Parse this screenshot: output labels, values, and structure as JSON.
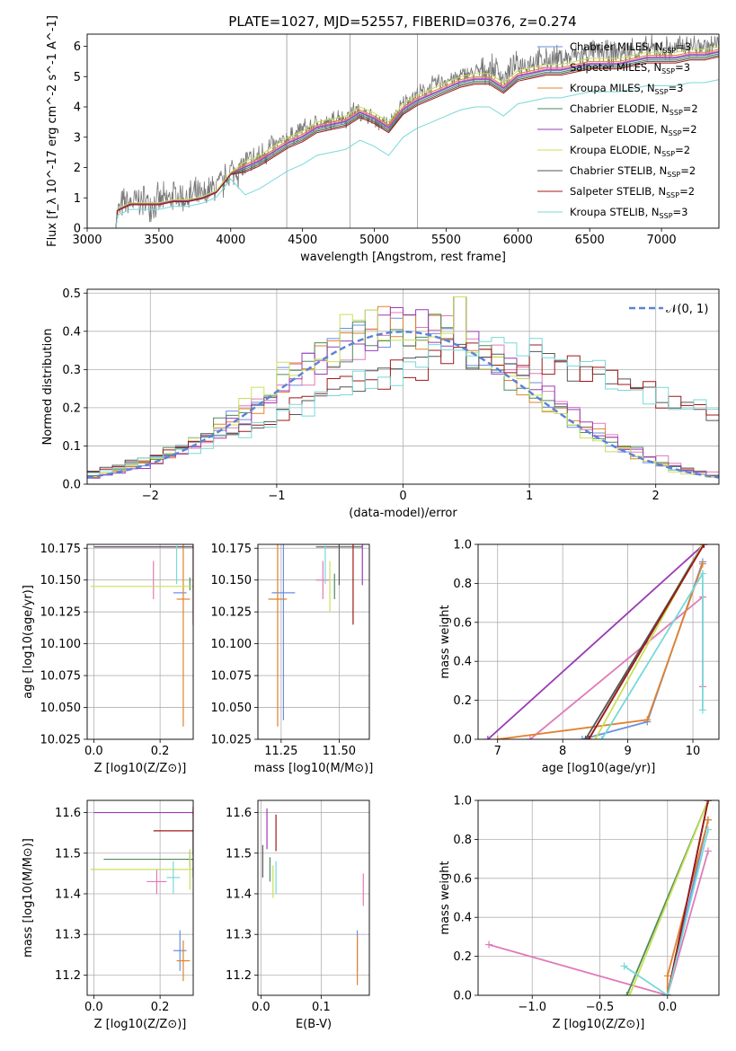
{
  "figure": {
    "title": "PLATE=1027, MJD=52557, FIBERID=0376, z=0.274"
  },
  "colors": {
    "Chabrier MILES": "#6a8fe0",
    "Salpeter MILES": "#e07ab8",
    "Kroupa MILES": "#e0822c",
    "Chabrier ELODIE": "#4f8a5a",
    "Salpeter ELODIE": "#9a3cb3",
    "Kroupa ELODIE": "#c8e05a",
    "Chabrier STELIB": "#555555",
    "Salpeter STELIB": "#a01818",
    "Kroupa STELIB": "#78d8d8",
    "gauss": "#5b82d6",
    "grid": "#b0b0b0"
  },
  "chart_data": [
    {
      "id": "spectrum",
      "type": "line",
      "title": "PLATE=1027, MJD=52557, FIBERID=0376, z=0.274",
      "xlabel": "wavelength [Angstrom, rest frame]",
      "ylabel": "Flux [f_λ 10^-17 erg cm^-2 s^-1 A^-1]",
      "xlim": [
        3000,
        7400
      ],
      "ylim": [
        0,
        6.4
      ],
      "xticks": [
        3000,
        3500,
        4000,
        4500,
        5000,
        5500,
        6000,
        6500,
        7000
      ],
      "yticks": [
        0,
        1,
        2,
        3,
        4,
        5,
        6
      ],
      "grid": false,
      "legend": "upper right",
      "data_color": "#777777",
      "data_x": [
        3200,
        3210,
        3250,
        3300,
        3350,
        3400,
        3450,
        3500,
        3550,
        3600,
        3650,
        3700,
        3750,
        3800,
        3850,
        3900,
        3950,
        4000,
        4050,
        4100,
        4150,
        4200,
        4250,
        4300,
        4350,
        4400,
        4450,
        4500,
        4550,
        4600,
        4650,
        4700,
        4750,
        4800,
        4850,
        4900,
        4950,
        5000,
        5050,
        5100,
        5150,
        5200,
        5250,
        5300,
        5350,
        5400,
        5450,
        5500,
        5550,
        5600,
        5650,
        5700,
        5750,
        5800,
        5850,
        5900,
        5950,
        6000,
        6050,
        6100,
        6150,
        6200,
        6250,
        6300,
        6350,
        6400,
        6450,
        6500,
        6550,
        6600,
        6650,
        6700,
        6750,
        6800,
        6850,
        6900,
        6950,
        7000,
        7050,
        7100,
        7150,
        7200,
        7250,
        7300,
        7350,
        7400
      ],
      "data_y": [
        0.0,
        0.5,
        0.8,
        0.8,
        0.9,
        0.9,
        0.8,
        0.9,
        0.9,
        1.1,
        1.0,
        1.0,
        1.1,
        1.0,
        1.2,
        1.4,
        1.5,
        1.9,
        1.9,
        2.1,
        2.2,
        2.3,
        2.6,
        2.7,
        2.8,
        3.0,
        3.1,
        3.3,
        3.3,
        3.5,
        3.4,
        3.5,
        3.7,
        3.6,
        3.9,
        3.8,
        3.7,
        3.6,
        3.5,
        3.4,
        3.7,
        4.1,
        4.3,
        4.4,
        4.5,
        4.7,
        4.8,
        4.9,
        4.9,
        5.0,
        5.1,
        5.1,
        5.2,
        5.2,
        5.3,
        4.9,
        5.2,
        5.4,
        5.4,
        5.5,
        5.5,
        5.5,
        5.6,
        5.6,
        5.6,
        5.7,
        5.7,
        5.8,
        5.8,
        5.8,
        5.7,
        5.8,
        5.8,
        5.9,
        5.8,
        5.9,
        5.9,
        5.9,
        5.9,
        5.9,
        6.0,
        6.0,
        6.0,
        6.0,
        6.0,
        6.0
      ],
      "series": [
        {
          "name": "Chabrier MILES",
          "nssp": "3",
          "offset": 0.0
        },
        {
          "name": "Salpeter MILES",
          "nssp": "3",
          "offset": 0.05
        },
        {
          "name": "Kroupa MILES",
          "nssp": "3",
          "offset": 0.1
        },
        {
          "name": "Chabrier ELODIE",
          "nssp": "2",
          "offset": -0.05
        },
        {
          "name": "Salpeter ELODIE",
          "nssp": "2",
          "offset": 0.02
        },
        {
          "name": "Kroupa ELODIE",
          "nssp": "2",
          "offset": 0.2
        },
        {
          "name": "Chabrier STELIB",
          "nssp": "2",
          "offset": -0.1
        },
        {
          "name": "Salpeter STELIB",
          "nssp": "2",
          "offset": -0.15
        },
        {
          "name": "Kroupa STELIB",
          "nssp": "3",
          "offset": -0.9
        }
      ],
      "model_x": [
        3200,
        3210,
        3300,
        3400,
        3500,
        3600,
        3700,
        3800,
        3900,
        4000,
        4100,
        4200,
        4300,
        4400,
        4500,
        4600,
        4700,
        4800,
        4900,
        5000,
        5100,
        5200,
        5300,
        5400,
        5500,
        5600,
        5700,
        5800,
        5900,
        6000,
        6100,
        6200,
        6300,
        6400,
        6500,
        6600,
        6700,
        6800,
        6900,
        7000,
        7100,
        7200,
        7300,
        7400
      ],
      "model_y": [
        0.0,
        0.6,
        0.8,
        0.8,
        0.8,
        0.9,
        0.9,
        1.0,
        1.2,
        1.8,
        2.0,
        2.2,
        2.5,
        2.8,
        3.0,
        3.3,
        3.4,
        3.5,
        3.8,
        3.6,
        3.3,
        3.9,
        4.2,
        4.4,
        4.6,
        4.8,
        4.9,
        4.9,
        4.6,
        5.0,
        5.1,
        5.2,
        5.2,
        5.3,
        5.4,
        5.4,
        5.4,
        5.5,
        5.6,
        5.6,
        5.6,
        5.7,
        5.7,
        5.8
      ]
    },
    {
      "id": "residuals",
      "type": "line",
      "xlabel": "(data-model)/error",
      "ylabel": "Normed distribution",
      "xlim": [
        -2.5,
        2.5
      ],
      "ylim": [
        0,
        0.51
      ],
      "xticks": [
        -2,
        -1,
        0,
        1,
        2
      ],
      "yticks": [
        0.0,
        0.1,
        0.2,
        0.3,
        0.4,
        0.5
      ],
      "grid": true,
      "legend": "upper right",
      "legend_label": "𝒩(0, 1)",
      "bin_width": 0.1,
      "series": [
        {
          "name": "Chabrier MILES",
          "shift": 0.0,
          "scale": 1.0
        },
        {
          "name": "Salpeter MILES",
          "shift": 0.05,
          "scale": 1.05
        },
        {
          "name": "Kroupa MILES",
          "shift": 0.0,
          "scale": 1.0
        },
        {
          "name": "Chabrier ELODIE",
          "shift": 0.0,
          "scale": 1.05
        },
        {
          "name": "Salpeter ELODIE",
          "shift": 0.05,
          "scale": 1.0
        },
        {
          "name": "Kroupa ELODIE",
          "shift": -0.05,
          "scale": 1.0
        },
        {
          "name": "Chabrier STELIB",
          "shift": 0.65,
          "scale": 1.35
        },
        {
          "name": "Salpeter STELIB",
          "shift": 0.7,
          "scale": 1.4
        },
        {
          "name": "Kroupa STELIB",
          "shift": 0.75,
          "scale": 1.35
        }
      ]
    },
    {
      "id": "age-z",
      "type": "scatter",
      "xlabel": "Z [log10(Z/Z⊙)]",
      "ylabel": "age [log10(age/yr)]",
      "xlim": [
        -0.02,
        0.3
      ],
      "ylim": [
        10.025,
        10.178
      ],
      "xticks": [
        0.0,
        0.2
      ],
      "yticks": [
        10.025,
        10.05,
        10.075,
        10.1,
        10.125,
        10.15,
        10.175
      ],
      "grid": true,
      "points": [
        {
          "series": "Chabrier MILES",
          "x": 0.26,
          "y": 10.14,
          "xerr": 0.02,
          "yerr": 0.0
        },
        {
          "series": "Salpeter MILES",
          "x": 0.18,
          "y": 10.15,
          "xerr": 0.0,
          "yerr": 0.015
        },
        {
          "series": "Kroupa MILES",
          "x": 0.27,
          "y": 10.135,
          "xerr": 0.02,
          "yerr": 0.1
        },
        {
          "series": "Chabrier ELODIE",
          "x": 0.29,
          "y": 10.147,
          "xerr": 0.0,
          "yerr": 0.005
        },
        {
          "series": "Salpeter ELODIE",
          "x": 0.3,
          "y": 10.176,
          "xerr": 0.3,
          "yerr": 0.0
        },
        {
          "series": "Kroupa ELODIE",
          "x": 0.29,
          "y": 10.145,
          "xerr": 0.3,
          "yerr": 0.0
        },
        {
          "series": "Chabrier STELIB",
          "x": 0.3,
          "y": 10.176,
          "xerr": 0.3,
          "yerr": 0.0
        },
        {
          "series": "Salpeter STELIB",
          "x": 0.3,
          "y": 10.17,
          "xerr": 0.0,
          "yerr": 0.055
        },
        {
          "series": "Kroupa STELIB",
          "x": 0.25,
          "y": 10.162,
          "xerr": 0.0,
          "yerr": 0.015
        }
      ]
    },
    {
      "id": "age-mass",
      "type": "scatter",
      "xlabel": "mass [log10(M/M⊙)]",
      "ylabel": "",
      "xlim": [
        11.15,
        11.63
      ],
      "ylim": [
        10.025,
        10.178
      ],
      "xticks": [
        11.25,
        11.5
      ],
      "yticks": [
        10.025,
        10.05,
        10.075,
        10.1,
        10.125,
        10.15,
        10.175
      ],
      "grid": true,
      "points": [
        {
          "series": "Chabrier MILES",
          "x": 11.26,
          "y": 10.14,
          "xerr": 0.05,
          "yerr": 0.1
        },
        {
          "series": "Salpeter MILES",
          "x": 11.43,
          "y": 10.15,
          "xerr": 0.03,
          "yerr": 0.015
        },
        {
          "series": "Kroupa MILES",
          "x": 11.235,
          "y": 10.135,
          "xerr": 0.04,
          "yerr": 0.1
        },
        {
          "series": "Chabrier ELODIE",
          "x": 11.48,
          "y": 10.145,
          "xerr": 0.0,
          "yerr": 0.01
        },
        {
          "series": "Salpeter ELODIE",
          "x": 11.6,
          "y": 10.176,
          "xerr": 0.0,
          "yerr": 0.03
        },
        {
          "series": "Kroupa ELODIE",
          "x": 11.46,
          "y": 10.145,
          "xerr": 0.0,
          "yerr": 0.02
        },
        {
          "series": "Chabrier STELIB",
          "x": 11.5,
          "y": 10.176,
          "xerr": 0.1,
          "yerr": 0.03
        },
        {
          "series": "Salpeter STELIB",
          "x": 11.56,
          "y": 10.17,
          "xerr": 0.0,
          "yerr": 0.055
        },
        {
          "series": "Kroupa STELIB",
          "x": 11.44,
          "y": 10.162,
          "xerr": 0.0,
          "yerr": 0.015
        }
      ]
    },
    {
      "id": "weight-age",
      "type": "line",
      "xlabel": "age [log10(age/yr)]",
      "ylabel": "mass weight",
      "xlim": [
        6.7,
        10.4
      ],
      "ylim": [
        0,
        1
      ],
      "xticks": [
        7,
        8,
        9,
        10
      ],
      "yticks": [
        0.0,
        0.2,
        0.4,
        0.6,
        0.8,
        1.0
      ],
      "grid": true,
      "series": [
        {
          "name": "Chabrier MILES",
          "x": [
            8.3,
            9.3,
            10.15
          ],
          "y": [
            0.0,
            0.09,
            0.91
          ]
        },
        {
          "name": "Salpeter MILES",
          "x": [
            7.5,
            10.15,
            10.15
          ],
          "y": [
            0.0,
            0.73,
            0.27
          ]
        },
        {
          "name": "Kroupa MILES",
          "x": [
            7.0,
            9.3,
            10.15
          ],
          "y": [
            0.0,
            0.1,
            0.9
          ]
        },
        {
          "name": "Chabrier ELODIE",
          "x": [
            8.4,
            10.15
          ],
          "y": [
            0.0,
            1.0
          ]
        },
        {
          "name": "Salpeter ELODIE",
          "x": [
            6.85,
            10.17
          ],
          "y": [
            0.0,
            1.0
          ]
        },
        {
          "name": "Kroupa ELODIE",
          "x": [
            8.5,
            10.15
          ],
          "y": [
            0.0,
            1.0
          ]
        },
        {
          "name": "Chabrier STELIB",
          "x": [
            8.35,
            10.17
          ],
          "y": [
            0.0,
            1.0
          ]
        },
        {
          "name": "Salpeter STELIB",
          "x": [
            8.4,
            10.17
          ],
          "y": [
            0.0,
            1.0
          ]
        },
        {
          "name": "Kroupa STELIB",
          "x": [
            8.6,
            10.15,
            10.15
          ],
          "y": [
            0.0,
            0.85,
            0.15
          ]
        }
      ]
    },
    {
      "id": "mass-z",
      "type": "scatter",
      "xlabel": "Z [log10(Z/Z⊙)]",
      "ylabel": "mass [log10(M/M⊙)]",
      "xlim": [
        -0.02,
        0.3
      ],
      "ylim": [
        11.15,
        11.63
      ],
      "xticks": [
        0.0,
        0.2
      ],
      "yticks": [
        11.2,
        11.3,
        11.4,
        11.5,
        11.6
      ],
      "grid": true,
      "points": [
        {
          "series": "Chabrier MILES",
          "x": 0.26,
          "y": 11.26,
          "xerr": 0.02,
          "yerr": 0.05
        },
        {
          "series": "Salpeter MILES",
          "x": 0.19,
          "y": 11.43,
          "xerr": 0.03,
          "yerr": 0.03
        },
        {
          "series": "Kroupa MILES",
          "x": 0.27,
          "y": 11.235,
          "xerr": 0.02,
          "yerr": 0.05
        },
        {
          "series": "Chabrier ELODIE",
          "x": 0.29,
          "y": 11.485,
          "xerr": 0.26,
          "yerr": 0.02
        },
        {
          "series": "Salpeter ELODIE",
          "x": 0.3,
          "y": 11.6,
          "xerr": 0.3,
          "yerr": 0.01
        },
        {
          "series": "Kroupa ELODIE",
          "x": 0.29,
          "y": 11.46,
          "xerr": 0.3,
          "yerr": 0.05
        },
        {
          "series": "Chabrier STELIB",
          "x": 0.3,
          "y": 11.5,
          "xerr": 0.0,
          "yerr": 0.06
        },
        {
          "series": "Salpeter STELIB",
          "x": 0.3,
          "y": 11.555,
          "xerr": 0.12,
          "yerr": 0.06
        },
        {
          "series": "Kroupa STELIB",
          "x": 0.24,
          "y": 11.44,
          "xerr": 0.02,
          "yerr": 0.04
        }
      ]
    },
    {
      "id": "mass-ebv",
      "type": "scatter",
      "xlabel": "E(B-V)",
      "ylabel": "",
      "xlim": [
        -0.005,
        0.18
      ],
      "ylim": [
        11.15,
        11.63
      ],
      "xticks": [
        0.0,
        0.1
      ],
      "yticks": [
        11.2,
        11.3,
        11.4,
        11.5,
        11.6
      ],
      "grid": true,
      "points": [
        {
          "series": "Chabrier MILES",
          "x": 0.16,
          "y": 11.26,
          "xerr": 0.0,
          "yerr": 0.05
        },
        {
          "series": "Salpeter MILES",
          "x": 0.17,
          "y": 11.41,
          "xerr": 0.0,
          "yerr": 0.04
        },
        {
          "series": "Kroupa MILES",
          "x": 0.16,
          "y": 11.235,
          "xerr": 0.0,
          "yerr": 0.06
        },
        {
          "series": "Chabrier ELODIE",
          "x": 0.015,
          "y": 11.46,
          "xerr": 0.0,
          "yerr": 0.03
        },
        {
          "series": "Salpeter ELODIE",
          "x": 0.01,
          "y": 11.56,
          "xerr": 0.0,
          "yerr": 0.05
        },
        {
          "series": "Kroupa ELODIE",
          "x": 0.02,
          "y": 11.43,
          "xerr": 0.0,
          "yerr": 0.04
        },
        {
          "series": "Chabrier STELIB",
          "x": 0.003,
          "y": 11.48,
          "xerr": 0.0,
          "yerr": 0.04
        },
        {
          "series": "Salpeter STELIB",
          "x": 0.025,
          "y": 11.55,
          "xerr": 0.0,
          "yerr": 0.045
        },
        {
          "series": "Kroupa STELIB",
          "x": 0.025,
          "y": 11.44,
          "xerr": 0.0,
          "yerr": 0.04
        }
      ]
    },
    {
      "id": "weight-z",
      "type": "line",
      "xlabel": "Z [log10(Z/Z⊙)]",
      "ylabel": "mass weight",
      "xlim": [
        -1.4,
        0.38
      ],
      "ylim": [
        0,
        1
      ],
      "xticks": [
        -1.0,
        -0.5,
        0.0
      ],
      "yticks": [
        0.0,
        0.2,
        0.4,
        0.6,
        0.8,
        1.0
      ],
      "grid": true,
      "series": [
        {
          "name": "Chabrier MILES",
          "x": [
            0.0,
            0.3
          ],
          "y": [
            0.0,
            0.9
          ]
        },
        {
          "name": "Salpeter MILES",
          "x": [
            -1.32,
            0.0,
            0.3
          ],
          "y": [
            0.26,
            0.0,
            0.74
          ]
        },
        {
          "name": "Kroupa MILES",
          "x": [
            0.0,
            0.0,
            0.3
          ],
          "y": [
            0.0,
            0.1,
            0.9
          ]
        },
        {
          "name": "Chabrier ELODIE",
          "x": [
            -0.3,
            0.3
          ],
          "y": [
            0.0,
            1.0
          ]
        },
        {
          "name": "Salpeter ELODIE",
          "x": [
            0.0,
            0.3
          ],
          "y": [
            0.0,
            1.0
          ]
        },
        {
          "name": "Kroupa ELODIE",
          "x": [
            -0.28,
            0.3
          ],
          "y": [
            0.0,
            1.0
          ]
        },
        {
          "name": "Chabrier STELIB",
          "x": [
            0.0,
            0.3
          ],
          "y": [
            0.0,
            1.0
          ]
        },
        {
          "name": "Salpeter STELIB",
          "x": [
            0.0,
            0.3
          ],
          "y": [
            0.0,
            1.0
          ]
        },
        {
          "name": "Kroupa STELIB",
          "x": [
            -0.32,
            0.0,
            0.3
          ],
          "y": [
            0.15,
            0.0,
            0.85
          ]
        }
      ]
    }
  ]
}
